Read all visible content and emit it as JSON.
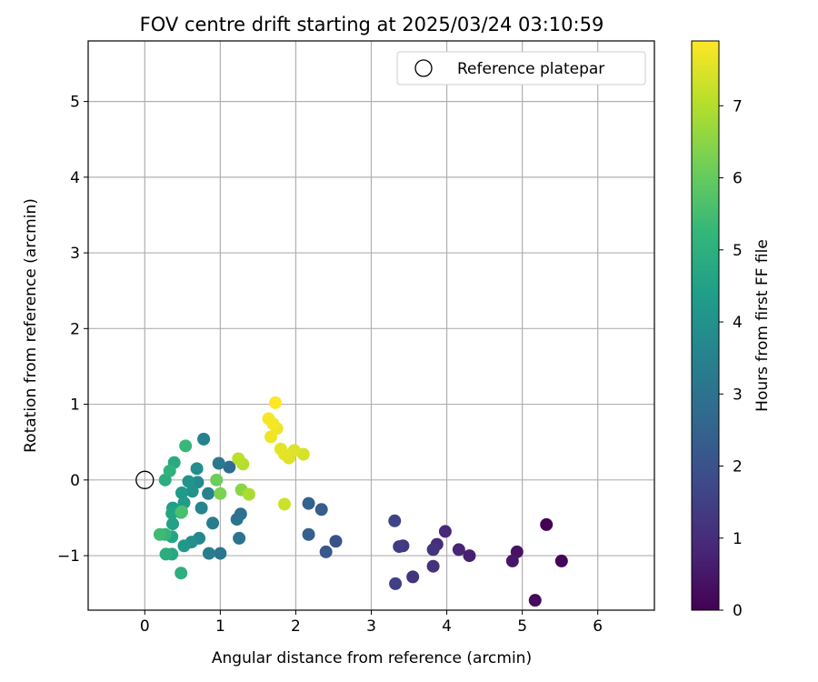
{
  "chart_data": {
    "type": "scatter",
    "title": "FOV centre drift starting at 2025/03/24 03:10:59",
    "xlabel": "Angular distance from reference (arcmin)",
    "ylabel": "Rotation from reference (arcmin)",
    "xlim": [
      -0.75,
      6.75
    ],
    "ylim": [
      -1.72,
      5.8
    ],
    "xticks": [
      0,
      1,
      2,
      3,
      4,
      5,
      6
    ],
    "yticks": [
      -1,
      0,
      1,
      2,
      3,
      4,
      5
    ],
    "grid": true,
    "legend": {
      "position": "upper right",
      "label": "Reference platepar",
      "marker": "open-circle"
    },
    "reference_point": {
      "x": 0,
      "y": 0
    },
    "colorbar": {
      "label": "Hours from first FF file",
      "colormap": "viridis",
      "range": [
        0,
        7.9
      ],
      "ticks": [
        0,
        1,
        2,
        3,
        4,
        5,
        6,
        7
      ]
    },
    "points": [
      {
        "x": 5.32,
        "y": -0.59,
        "h": 0.0
      },
      {
        "x": 5.52,
        "y": -1.07,
        "h": 0.1
      },
      {
        "x": 5.17,
        "y": -1.59,
        "h": 0.2
      },
      {
        "x": 4.93,
        "y": -0.95,
        "h": 0.4
      },
      {
        "x": 4.87,
        "y": -1.07,
        "h": 0.5
      },
      {
        "x": 4.3,
        "y": -1.0,
        "h": 0.7
      },
      {
        "x": 4.16,
        "y": -0.92,
        "h": 0.8
      },
      {
        "x": 3.98,
        "y": -0.68,
        "h": 0.9
      },
      {
        "x": 3.87,
        "y": -0.85,
        "h": 1.0
      },
      {
        "x": 3.82,
        "y": -1.14,
        "h": 1.1
      },
      {
        "x": 3.82,
        "y": -0.92,
        "h": 1.2
      },
      {
        "x": 3.55,
        "y": -1.28,
        "h": 1.2
      },
      {
        "x": 3.42,
        "y": -0.87,
        "h": 1.3
      },
      {
        "x": 3.37,
        "y": -0.88,
        "h": 1.4
      },
      {
        "x": 3.32,
        "y": -1.37,
        "h": 1.5
      },
      {
        "x": 3.31,
        "y": -0.54,
        "h": 1.6
      },
      {
        "x": 2.53,
        "y": -0.81,
        "h": 2.0
      },
      {
        "x": 2.4,
        "y": -0.95,
        "h": 2.2
      },
      {
        "x": 2.34,
        "y": -0.39,
        "h": 2.3
      },
      {
        "x": 2.17,
        "y": -0.72,
        "h": 2.4
      },
      {
        "x": 2.17,
        "y": -0.31,
        "h": 2.5
      },
      {
        "x": 1.12,
        "y": 0.17,
        "h": 2.8
      },
      {
        "x": 1.27,
        "y": -0.45,
        "h": 2.9
      },
      {
        "x": 1.22,
        "y": -0.52,
        "h": 3.0
      },
      {
        "x": 1.25,
        "y": -0.77,
        "h": 3.0
      },
      {
        "x": 1.0,
        "y": -0.97,
        "h": 3.1
      },
      {
        "x": 0.98,
        "y": 0.22,
        "h": 3.2
      },
      {
        "x": 0.9,
        "y": -0.57,
        "h": 3.3
      },
      {
        "x": 0.85,
        "y": -0.97,
        "h": 3.4
      },
      {
        "x": 0.84,
        "y": -0.18,
        "h": 3.5
      },
      {
        "x": 0.78,
        "y": 0.54,
        "h": 3.5
      },
      {
        "x": 0.75,
        "y": -0.37,
        "h": 3.6
      },
      {
        "x": 0.72,
        "y": -0.77,
        "h": 3.7
      },
      {
        "x": 0.7,
        "y": -0.03,
        "h": 3.8
      },
      {
        "x": 0.69,
        "y": 0.15,
        "h": 3.9
      },
      {
        "x": 0.62,
        "y": -0.82,
        "h": 3.9
      },
      {
        "x": 0.63,
        "y": -0.15,
        "h": 4.0
      },
      {
        "x": 0.58,
        "y": -0.02,
        "h": 4.1
      },
      {
        "x": 0.52,
        "y": -0.87,
        "h": 4.2
      },
      {
        "x": 0.52,
        "y": -0.3,
        "h": 4.3
      },
      {
        "x": 0.49,
        "y": -0.17,
        "h": 4.3
      },
      {
        "x": 0.37,
        "y": -0.37,
        "h": 4.4
      },
      {
        "x": 0.37,
        "y": -0.58,
        "h": 4.5
      },
      {
        "x": 0.36,
        "y": -0.44,
        "h": 4.6
      },
      {
        "x": 0.36,
        "y": -0.75,
        "h": 4.6
      },
      {
        "x": 0.36,
        "y": -0.98,
        "h": 4.7
      },
      {
        "x": 0.39,
        "y": 0.23,
        "h": 4.8
      },
      {
        "x": 0.28,
        "y": -0.98,
        "h": 4.9
      },
      {
        "x": 0.27,
        "y": 0.0,
        "h": 4.9
      },
      {
        "x": 0.48,
        "y": -1.23,
        "h": 5.0
      },
      {
        "x": 0.33,
        "y": 0.12,
        "h": 5.1
      },
      {
        "x": 0.48,
        "y": -0.43,
        "h": 5.2
      },
      {
        "x": 0.27,
        "y": -0.72,
        "h": 5.2
      },
      {
        "x": 0.54,
        "y": 0.45,
        "h": 5.3
      },
      {
        "x": 0.2,
        "y": -0.72,
        "h": 5.4
      },
      {
        "x": 0.49,
        "y": -0.42,
        "h": 5.6
      },
      {
        "x": 0.95,
        "y": 0.0,
        "h": 6.1
      },
      {
        "x": 1.0,
        "y": -0.18,
        "h": 6.3
      },
      {
        "x": 1.28,
        "y": -0.13,
        "h": 6.5
      },
      {
        "x": 1.38,
        "y": -0.19,
        "h": 6.9
      },
      {
        "x": 1.3,
        "y": 0.21,
        "h": 7.0
      },
      {
        "x": 1.24,
        "y": 0.28,
        "h": 7.1
      },
      {
        "x": 1.85,
        "y": -0.32,
        "h": 7.3
      },
      {
        "x": 2.1,
        "y": 0.34,
        "h": 7.4
      },
      {
        "x": 1.98,
        "y": 0.39,
        "h": 7.5
      },
      {
        "x": 1.91,
        "y": 0.29,
        "h": 7.5
      },
      {
        "x": 1.85,
        "y": 0.34,
        "h": 7.6
      },
      {
        "x": 1.8,
        "y": 0.41,
        "h": 7.6
      },
      {
        "x": 1.67,
        "y": 0.57,
        "h": 7.7
      },
      {
        "x": 1.75,
        "y": 0.68,
        "h": 7.7
      },
      {
        "x": 1.7,
        "y": 0.74,
        "h": 7.8
      },
      {
        "x": 1.64,
        "y": 0.81,
        "h": 7.8
      },
      {
        "x": 1.73,
        "y": 1.02,
        "h": 7.9
      }
    ]
  }
}
